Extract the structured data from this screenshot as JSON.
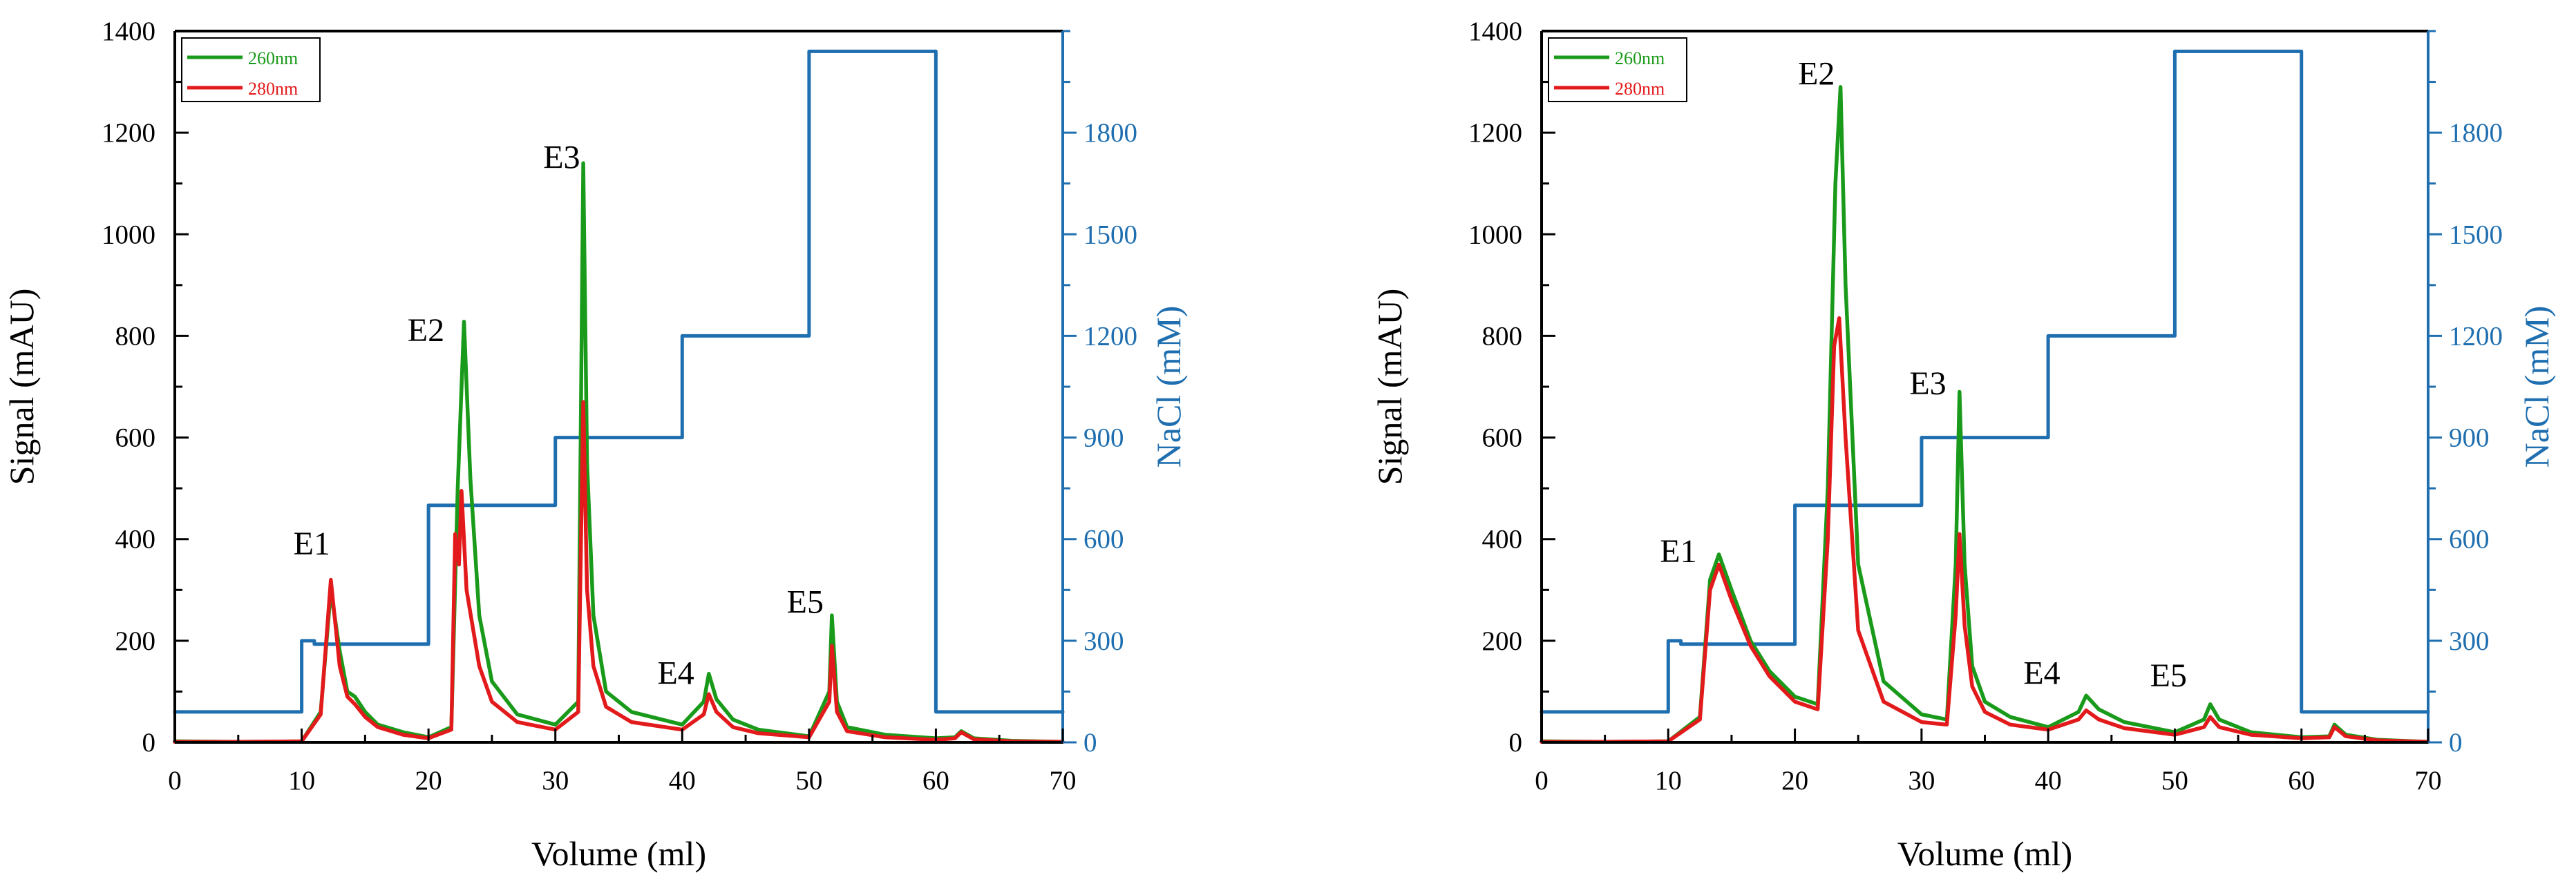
{
  "chart_data": [
    {
      "type": "line",
      "panel": "left",
      "xlabel": "Volume (ml)",
      "ylabel": "Signal (mAU)",
      "y2label": "NaCl (mM)",
      "xlim": [
        0,
        70
      ],
      "ylim": [
        0,
        1400
      ],
      "y2lim": [
        0,
        2100
      ],
      "xticks": [
        0,
        10,
        20,
        30,
        40,
        50,
        60,
        70
      ],
      "yticks": [
        0,
        200,
        400,
        600,
        800,
        1000,
        1200,
        1400
      ],
      "y2ticks": [
        0,
        300,
        600,
        900,
        1200,
        1500,
        1800
      ],
      "legend": [
        {
          "label": "260nm",
          "color": "#1a9a1a"
        },
        {
          "label": "280nm",
          "color": "#e31a1c"
        }
      ],
      "series": [
        {
          "name": "260nm",
          "axis": "left",
          "color": "#1a9a1a",
          "x": [
            0,
            5,
            10,
            11.5,
            12.3,
            13,
            13.6,
            14.2,
            15,
            16,
            18,
            20,
            21.8,
            22.3,
            22.8,
            23.3,
            24,
            25,
            27,
            30,
            31.8,
            32.2,
            32.5,
            33,
            34,
            36,
            40,
            41.7,
            42.1,
            42.7,
            44,
            46,
            50,
            51.6,
            51.8,
            52.2,
            53,
            56,
            60,
            61.5,
            62,
            63,
            66,
            70
          ],
          "y": [
            2,
            1,
            2,
            60,
            300,
            180,
            100,
            90,
            60,
            35,
            20,
            10,
            30,
            500,
            828,
            520,
            250,
            120,
            55,
            35,
            80,
            1140,
            550,
            250,
            100,
            60,
            35,
            80,
            135,
            85,
            45,
            25,
            12,
            100,
            250,
            80,
            30,
            15,
            8,
            10,
            22,
            8,
            3,
            1
          ]
        },
        {
          "name": "280nm",
          "axis": "left",
          "color": "#e31a1c",
          "x": [
            0,
            5,
            10,
            11.5,
            12.3,
            13,
            13.6,
            14.2,
            15,
            16,
            18,
            20,
            21.8,
            22.1,
            22.4,
            22.6,
            23,
            24,
            25,
            27,
            30,
            31.8,
            32.2,
            32.5,
            33,
            34,
            36,
            40,
            41.7,
            42.1,
            42.7,
            44,
            46,
            50,
            51.6,
            51.8,
            52.2,
            53,
            56,
            60,
            61.5,
            62,
            63,
            66,
            70
          ],
          "y": [
            1,
            1,
            2,
            55,
            320,
            150,
            90,
            75,
            50,
            30,
            15,
            8,
            25,
            410,
            350,
            495,
            300,
            150,
            80,
            40,
            25,
            60,
            670,
            300,
            150,
            70,
            40,
            25,
            55,
            95,
            60,
            30,
            18,
            10,
            80,
            190,
            60,
            22,
            10,
            5,
            8,
            20,
            6,
            2,
            1
          ]
        },
        {
          "name": "NaCl",
          "axis": "right",
          "color": "#1f6fb0",
          "x": [
            0,
            10,
            10,
            11,
            11,
            20,
            20,
            30,
            30,
            40,
            40,
            50,
            50,
            60,
            60,
            70
          ],
          "y": [
            90,
            90,
            300,
            300,
            290,
            290,
            700,
            700,
            900,
            900,
            1200,
            1200,
            2040,
            2040,
            90,
            90
          ]
        }
      ],
      "annotations": [
        {
          "text": "E1",
          "x": 10.8,
          "y": 370
        },
        {
          "text": "E2",
          "x": 19.8,
          "y": 790
        },
        {
          "text": "E3",
          "x": 30.5,
          "y": 1130
        },
        {
          "text": "E4",
          "x": 39.5,
          "y": 115
        },
        {
          "text": "E5",
          "x": 49.7,
          "y": 255
        }
      ]
    },
    {
      "type": "line",
      "panel": "right",
      "xlabel": "Volume (ml)",
      "ylabel": "Signal (mAU)",
      "y2label": "NaCl (mM)",
      "xlim": [
        0,
        70
      ],
      "ylim": [
        0,
        1400
      ],
      "y2lim": [
        0,
        2100
      ],
      "xticks": [
        0,
        10,
        20,
        30,
        40,
        50,
        60,
        70
      ],
      "yticks": [
        0,
        200,
        400,
        600,
        800,
        1000,
        1200,
        1400
      ],
      "y2ticks": [
        0,
        300,
        600,
        900,
        1200,
        1500,
        1800
      ],
      "legend": [
        {
          "label": "260nm",
          "color": "#1a9a1a"
        },
        {
          "label": "280nm",
          "color": "#e31a1c"
        }
      ],
      "series": [
        {
          "name": "260nm",
          "axis": "left",
          "color": "#1a9a1a",
          "x": [
            0,
            5,
            10,
            12.5,
            13.3,
            14,
            15,
            16.5,
            18,
            20,
            21.8,
            22.6,
            23.2,
            23.6,
            24,
            25,
            27,
            30,
            32,
            32.7,
            33,
            33.4,
            34,
            35,
            37,
            40,
            42.4,
            43,
            44,
            46,
            50,
            52.3,
            52.8,
            53.5,
            56,
            60,
            62.2,
            62.6,
            63.5,
            66,
            70
          ],
          "y": [
            2,
            1,
            2,
            50,
            320,
            370,
            300,
            200,
            140,
            90,
            75,
            500,
            1100,
            1290,
            900,
            350,
            120,
            55,
            45,
            350,
            690,
            350,
            150,
            80,
            50,
            30,
            60,
            92,
            65,
            40,
            20,
            45,
            75,
            45,
            20,
            10,
            12,
            35,
            15,
            5,
            1
          ]
        },
        {
          "name": "280nm",
          "axis": "left",
          "color": "#e31a1c",
          "x": [
            0,
            5,
            10,
            12.5,
            13.3,
            14,
            15,
            16.5,
            18,
            20,
            21.8,
            22.6,
            23.1,
            23.5,
            24,
            25,
            27,
            30,
            32,
            32.7,
            33,
            33.4,
            34,
            35,
            37,
            40,
            42.4,
            43,
            44,
            46,
            50,
            52.3,
            52.8,
            53.5,
            56,
            60,
            62.2,
            62.6,
            63.5,
            66,
            70
          ],
          "y": [
            1,
            1,
            2,
            45,
            300,
            350,
            280,
            190,
            130,
            80,
            65,
            400,
            780,
            835,
            600,
            220,
            80,
            40,
            35,
            250,
            410,
            230,
            110,
            60,
            35,
            25,
            45,
            63,
            45,
            28,
            15,
            30,
            50,
            30,
            15,
            8,
            10,
            30,
            12,
            4,
            1
          ]
        },
        {
          "name": "NaCl",
          "axis": "right",
          "color": "#1f6fb0",
          "x": [
            0,
            10,
            10,
            11,
            11,
            20,
            20,
            30,
            30,
            40,
            40,
            50,
            50,
            60,
            60,
            70
          ],
          "y": [
            90,
            90,
            300,
            300,
            290,
            290,
            700,
            700,
            900,
            900,
            1200,
            1200,
            2040,
            2040,
            90,
            90
          ]
        }
      ],
      "annotations": [
        {
          "text": "E1",
          "x": 10.8,
          "y": 355
        },
        {
          "text": "E2",
          "x": 21.7,
          "y": 1295
        },
        {
          "text": "E3",
          "x": 30.5,
          "y": 685
        },
        {
          "text": "E4",
          "x": 39.5,
          "y": 115
        },
        {
          "text": "E5",
          "x": 49.5,
          "y": 110
        }
      ]
    }
  ]
}
